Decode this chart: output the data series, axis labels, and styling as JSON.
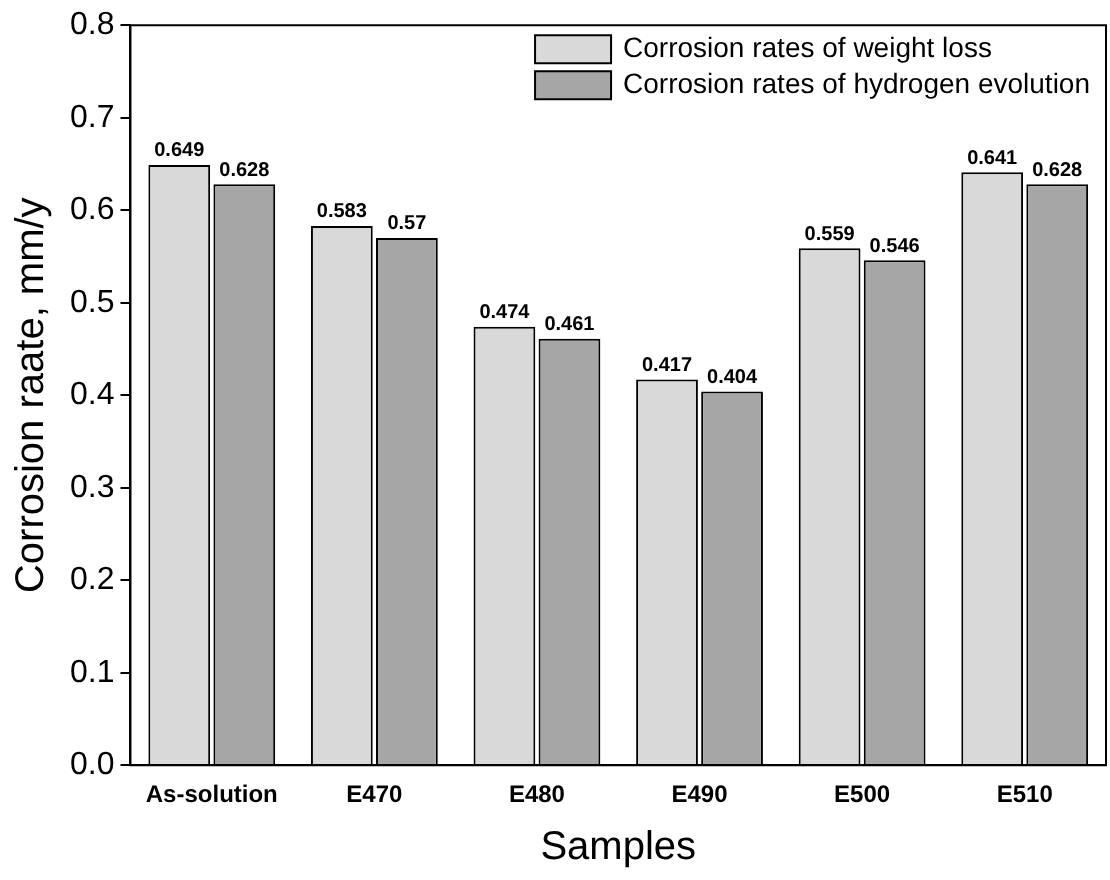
{
  "chart_data": {
    "type": "bar",
    "xlabel": "Samples",
    "ylabel": "Corrosion raate, mm/y",
    "categories": [
      "As-solution",
      "E470",
      "E480",
      "E490",
      "E500",
      "E510"
    ],
    "series": [
      {
        "name": "Corrosion rates of weight loss",
        "color": "#d9d9d9",
        "values": [
          0.649,
          0.583,
          0.474,
          0.417,
          0.559,
          0.641
        ]
      },
      {
        "name": "Corrosion rates of hydrogen evolution",
        "color": "#a6a6a6",
        "values": [
          0.628,
          0.57,
          0.461,
          0.404,
          0.546,
          0.628
        ]
      }
    ],
    "ylim": [
      0,
      0.8
    ],
    "yticks": [
      {
        "value": 0,
        "label": "0.0"
      },
      {
        "value": 0.1,
        "label": "0.1"
      },
      {
        "value": 0.2,
        "label": "0.2"
      },
      {
        "value": 0.3,
        "label": "0.3"
      },
      {
        "value": 0.4,
        "label": "0.4"
      },
      {
        "value": 0.5,
        "label": "0.5"
      },
      {
        "value": 0.6,
        "label": "0.6"
      },
      {
        "value": 0.7,
        "label": "0.7"
      },
      {
        "value": 0.8,
        "label": "0.8"
      }
    ],
    "grid": false,
    "legend": "top right",
    "data_labels": true
  }
}
